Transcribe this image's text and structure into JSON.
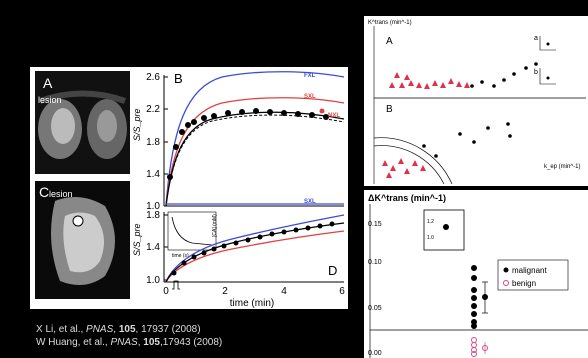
{
  "panel_a": {
    "letter": "A",
    "lesion": "lesion"
  },
  "panel_c": {
    "letter": "C",
    "lesion": "lesion"
  },
  "main_plot": {
    "letter_b": "B",
    "letter_d": "D",
    "yticks_top": [
      "2.6",
      "2.2",
      "1.8",
      "1.4",
      "1.0"
    ],
    "yticks_bottom": [
      "1.8",
      "1.4",
      "1.0"
    ],
    "ylabel_top": "S/S_pre",
    "ylabel_bottom": "S/S_pre",
    "xticks": [
      "0",
      "2",
      "4",
      "6"
    ],
    "xlabel": "time (min)",
    "labels": {
      "fxl": "FXL",
      "sxl_top": "SXL",
      "nxl_top": "NXL",
      "sxl_bottom": "SXL"
    },
    "inset": {
      "ylabel": "[CA] (mM)",
      "xlabel": "time (s)",
      "xticks": [
        "0",
        "10",
        "20"
      ]
    }
  },
  "right_top": {
    "ylabel": "K^trans (min^-1)",
    "letter_a": "A",
    "letter_b": "B",
    "inset_a": "a",
    "inset_b": "b",
    "xlabel": "k_ep (min^-1)",
    "yticks_a": [
      "0.3",
      "0.2",
      "0.1",
      "0.0"
    ],
    "yticks_b": [
      "0.3",
      "0.2",
      "0.1",
      "0.0"
    ],
    "xticks": [
      "0.0",
      "0.2",
      "0.4",
      "0.6"
    ]
  },
  "right_bottom": {
    "ylabel": "ΔK^trans (min^-1)",
    "yticks": [
      "0.15",
      "0.10",
      "0.05",
      "0.00"
    ],
    "inset_ticks": [
      "1.2",
      "1.0"
    ],
    "legend": {
      "malignant": "malignant",
      "benign": "benign"
    }
  },
  "references": [
    {
      "authors": "X Li, et al., ",
      "journal": "PNAS",
      "volume": "105",
      "rest": ", 17937 (2008)"
    },
    {
      "authors": "W Huang, et al., ",
      "journal": "PNAS",
      "volume": "105",
      "rest": ",17943 (2008)"
    }
  ],
  "chart_data": [
    {
      "type": "line",
      "title": "",
      "xlabel": "time (min)",
      "ylabel": "S/S_pre",
      "ylim": [
        1.0,
        2.6
      ],
      "xlim": [
        0,
        6
      ],
      "series": [
        {
          "name": "FXL",
          "x": [
            0,
            0.3,
            0.6,
            1,
            1.5,
            2,
            3,
            4,
            5,
            6
          ],
          "values": [
            1.0,
            1.9,
            2.25,
            2.4,
            2.5,
            2.55,
            2.58,
            2.58,
            2.56,
            2.52
          ]
        },
        {
          "name": "SXL",
          "x": [
            0,
            0.3,
            0.6,
            1,
            1.5,
            2,
            3,
            4,
            5,
            6
          ],
          "values": [
            1.0,
            1.75,
            2.05,
            2.2,
            2.3,
            2.35,
            2.38,
            2.37,
            2.35,
            2.32
          ]
        },
        {
          "name": "NXL",
          "x": [
            0,
            6
          ],
          "values": [
            1.0,
            1.0
          ]
        },
        {
          "x": [
            0.1,
            0.3,
            0.5,
            0.7,
            0.9,
            1.2,
            1.5,
            2,
            2.5,
            3,
            3.5,
            4,
            4.5,
            5,
            5.5
          ],
          "values": [
            1.1,
            1.6,
            1.85,
            1.98,
            2.05,
            2.1,
            2.15,
            2.18,
            2.2,
            2.2,
            2.2,
            2.19,
            2.18,
            2.17,
            2.15
          ]
        }
      ]
    },
    {
      "type": "scatter",
      "xlabel": "ΔK^trans (min^-1)",
      "ylim": [
        0.0,
        0.15
      ],
      "series": [
        {
          "name": "malignant",
          "values": [
            0.115,
            0.093,
            0.085,
            0.07,
            0.06,
            0.055,
            0.05,
            0.045,
            0.035,
            0.03
          ]
        },
        {
          "name": "benign",
          "values": [
            0.012,
            0.008,
            0.005,
            0.003,
            0.002,
            0.001
          ]
        }
      ]
    }
  ]
}
